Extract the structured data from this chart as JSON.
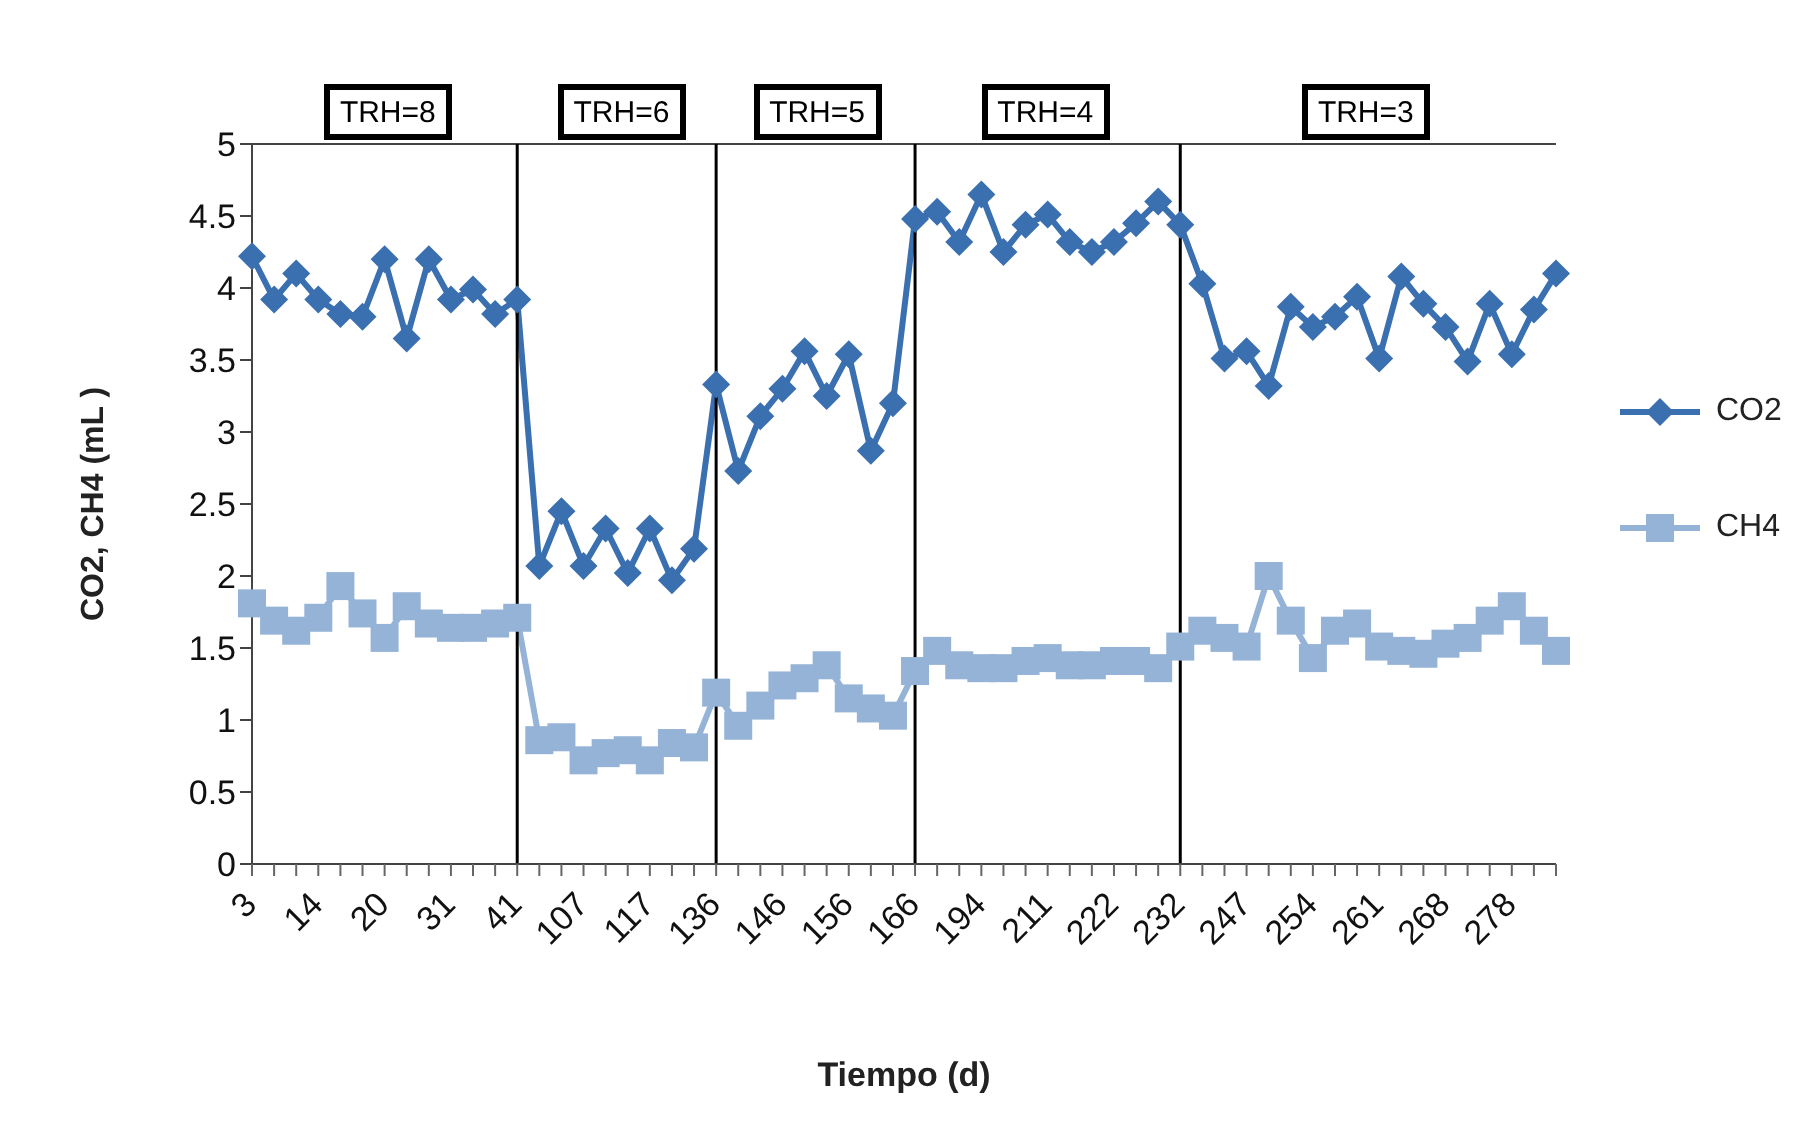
{
  "chart_data": {
    "type": "line",
    "xlabel": "Tiempo (d)",
    "ylabel": "CO2, CH4  (mL )",
    "categories": [
      "3",
      null,
      null,
      "14",
      null,
      null,
      "20",
      null,
      null,
      "31",
      null,
      null,
      "41",
      null,
      null,
      "107",
      null,
      null,
      "117",
      null,
      null,
      "136",
      null,
      null,
      "146",
      null,
      null,
      "156",
      null,
      null,
      "166",
      null,
      null,
      "194",
      null,
      null,
      "211",
      null,
      null,
      "222",
      null,
      null,
      "232",
      null,
      null,
      "247",
      null,
      null,
      "254",
      null,
      null,
      "261",
      null,
      null,
      "268",
      null,
      null,
      "278",
      null,
      null
    ],
    "series": [
      {
        "name": "CO2",
        "color": "#3a6fb0",
        "marker": "diamond",
        "values": [
          4.22,
          3.92,
          4.1,
          3.92,
          3.82,
          3.8,
          4.2,
          3.65,
          4.2,
          3.92,
          3.99,
          3.82,
          3.92,
          2.07,
          2.45,
          2.07,
          2.33,
          2.02,
          2.33,
          1.97,
          2.19,
          3.33,
          2.73,
          3.11,
          3.3,
          3.56,
          3.25,
          3.54,
          2.87,
          3.2,
          4.48,
          4.53,
          4.32,
          4.65,
          4.25,
          4.44,
          4.51,
          4.32,
          4.25,
          4.32,
          4.45,
          4.6,
          4.44,
          4.03,
          3.51,
          3.56,
          3.32,
          3.87,
          3.73,
          3.8,
          3.94,
          3.51,
          4.08,
          3.89,
          3.73,
          3.49,
          3.89,
          3.54,
          3.85,
          4.1
        ]
      },
      {
        "name": "CH4",
        "color": "#95b3d7",
        "marker": "square",
        "values": [
          1.81,
          1.69,
          1.62,
          1.71,
          1.93,
          1.74,
          1.57,
          1.79,
          1.67,
          1.64,
          1.64,
          1.67,
          1.71,
          0.86,
          0.88,
          0.72,
          0.77,
          0.79,
          0.72,
          0.84,
          0.81,
          1.19,
          0.96,
          1.1,
          1.24,
          1.29,
          1.38,
          1.15,
          1.08,
          1.03,
          1.34,
          1.48,
          1.38,
          1.36,
          1.36,
          1.41,
          1.43,
          1.38,
          1.38,
          1.41,
          1.41,
          1.36,
          1.51,
          1.62,
          1.57,
          1.51,
          2.0,
          1.69,
          1.43,
          1.62,
          1.67,
          1.51,
          1.48,
          1.46,
          1.53,
          1.57,
          1.69,
          1.79,
          1.62,
          1.48
        ]
      }
    ],
    "ylim": [
      0,
      5
    ],
    "yticks": [
      0,
      0.5,
      1,
      1.5,
      2,
      2.5,
      3,
      3.5,
      4,
      4.5,
      5
    ],
    "ref_lines": [
      {
        "axis": "x",
        "value": "41",
        "color": "#000000"
      },
      {
        "axis": "x",
        "value": "136",
        "color": "#000000"
      },
      {
        "axis": "x",
        "value": "166",
        "color": "#000000"
      },
      {
        "axis": "x",
        "value": "232",
        "color": "#000000"
      }
    ],
    "annotations": [
      "TRH=8",
      "TRH=6",
      "TRH=5",
      "TRH=4",
      "TRH=3"
    ],
    "legend": "right",
    "grid": false
  }
}
